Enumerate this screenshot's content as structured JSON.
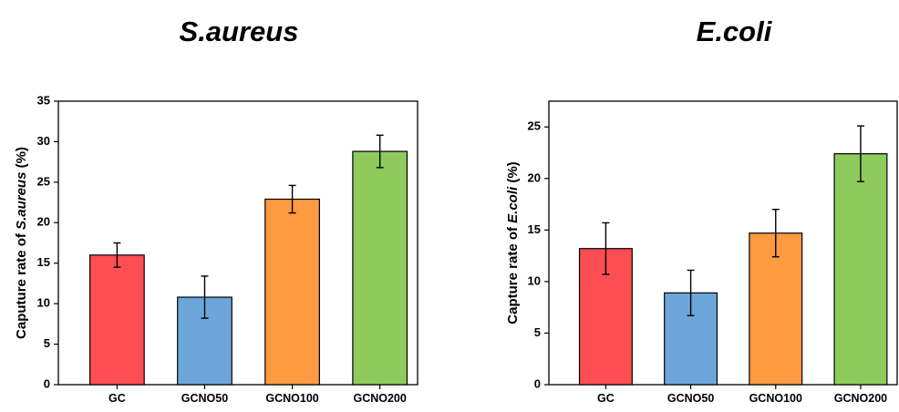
{
  "chart_data": [
    {
      "type": "bar",
      "title": "S.aureus",
      "ylabel_prefix": "Caputure rate of ",
      "ylabel_italic": "S.aureus",
      "ylabel_suffix": " (%)",
      "xlabel": "",
      "categories": [
        "GC",
        "GCNO50",
        "GCNO100",
        "GCNO200"
      ],
      "values": [
        16.0,
        10.8,
        22.9,
        28.8
      ],
      "errors": [
        1.5,
        2.6,
        1.7,
        2.0
      ],
      "colors": [
        "#fc4e53",
        "#6ca6da",
        "#fd9a42",
        "#8fcb5c"
      ],
      "ylim": [
        0,
        35
      ],
      "yticks": [
        0,
        5,
        10,
        15,
        20,
        25,
        30,
        35
      ],
      "grid": false
    },
    {
      "type": "bar",
      "title": "E.coli",
      "ylabel_prefix": "Capture rate of ",
      "ylabel_italic": "E.coli",
      "ylabel_suffix": " (%)",
      "xlabel": "",
      "categories": [
        "GC",
        "GCNO50",
        "GCNO100",
        "GCNO200"
      ],
      "values": [
        13.2,
        8.9,
        14.7,
        22.4
      ],
      "errors": [
        2.5,
        2.2,
        2.3,
        2.7
      ],
      "colors": [
        "#fc4e53",
        "#6ca6da",
        "#fd9a42",
        "#8fcb5c"
      ],
      "ylim": [
        0,
        27.5
      ],
      "yticks": [
        0,
        5,
        10,
        15,
        20,
        25
      ],
      "grid": false
    }
  ]
}
